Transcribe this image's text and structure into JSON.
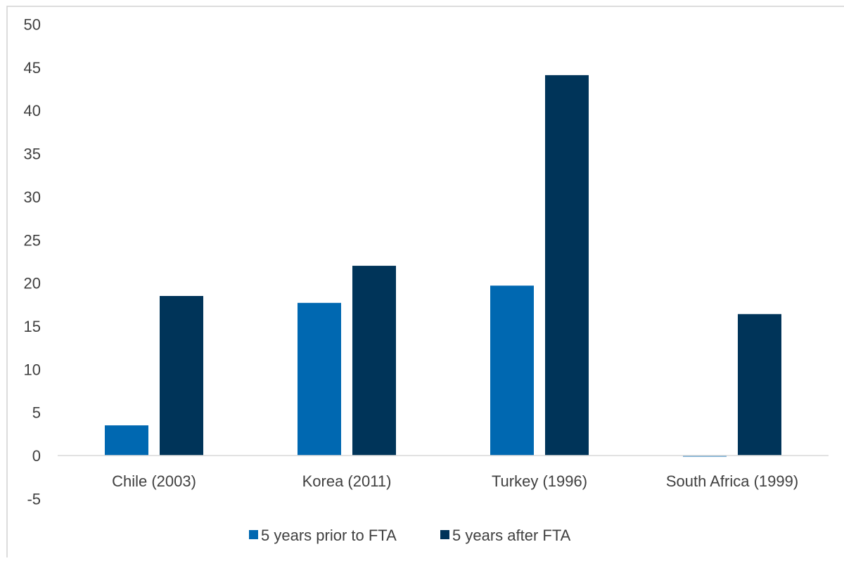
{
  "chart_data": {
    "type": "bar",
    "title": "",
    "xlabel": "",
    "ylabel": "",
    "categories": [
      "Chile (2003)",
      "Korea (2011)",
      "Turkey (1996)",
      "South Africa (1999)"
    ],
    "series": [
      {
        "name": "5 years prior to FTA",
        "color": "#0068B1",
        "values": [
          3.5,
          17.7,
          19.7,
          -0.1
        ]
      },
      {
        "name": "5 years after FTA",
        "color": "#003459",
        "values": [
          18.5,
          22.0,
          44.1,
          16.4
        ]
      }
    ],
    "ylim": [
      -5,
      50
    ],
    "yticks": [
      "-5",
      "0",
      "5",
      "10",
      "15",
      "20",
      "25",
      "30",
      "35",
      "40",
      "45",
      "50"
    ],
    "grid": false,
    "legend_position": "bottom"
  }
}
